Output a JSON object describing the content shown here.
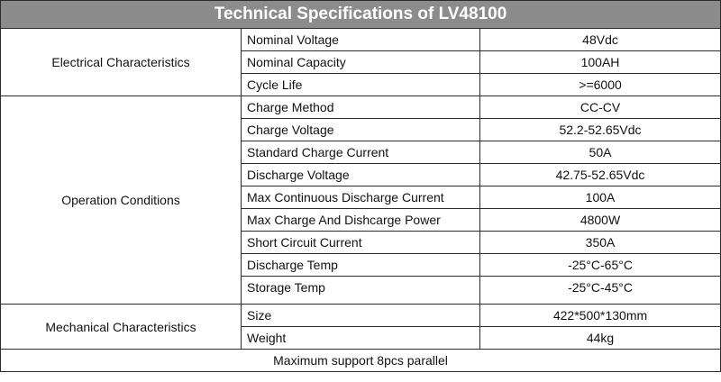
{
  "title": "Technical Specifications of LV48100",
  "groups": [
    {
      "name": "Electrical Characteristics",
      "rows": [
        {
          "param": "Nominal Voltage",
          "value": "48Vdc"
        },
        {
          "param": "Nominal Capacity",
          "value": "100AH"
        },
        {
          "param": "Cycle Life",
          "value": ">=6000"
        }
      ]
    },
    {
      "name": "Operation Conditions",
      "rows": [
        {
          "param": "Charge Method",
          "value": "CC-CV"
        },
        {
          "param": "Charge Voltage",
          "value": "52.2-52.65Vdc"
        },
        {
          "param": "Standard Charge Current",
          "value": "50A"
        },
        {
          "param": "Discharge Voltage",
          "value": "42.75-52.65Vdc"
        },
        {
          "param": "Max Continuous Discharge Current",
          "value": "100A"
        },
        {
          "param": "Max Charge And Dishcarge Power",
          "value": "4800W"
        },
        {
          "param": "Short Circuit Current",
          "value": "350A"
        },
        {
          "param": "Discharge Temp",
          "value": "-25°C-65°C"
        },
        {
          "param": "Storage Temp",
          "value": "-25°C-45°C"
        }
      ]
    },
    {
      "name": "Mechanical Characteristics",
      "rows": [
        {
          "param": "Size",
          "value": "422*500*130mm"
        },
        {
          "param": "Weight",
          "value": "44kg"
        }
      ]
    }
  ],
  "footer": "Maximum support 8pcs parallel"
}
